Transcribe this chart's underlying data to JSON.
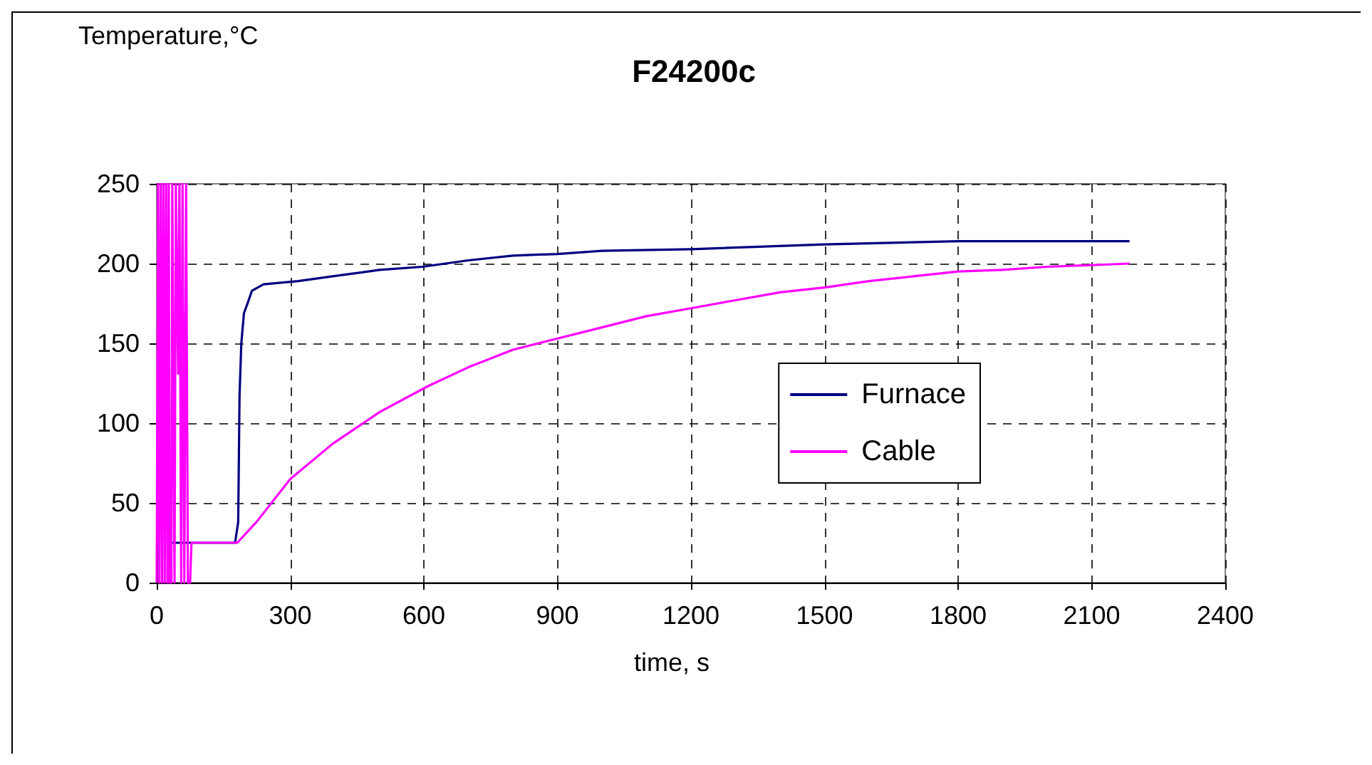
{
  "chart_data": {
    "type": "line",
    "title": "F24200c",
    "xlabel": "time, s",
    "ylabel": "Temperature,°C",
    "xlim": [
      0,
      2400
    ],
    "xticks": [
      0,
      300,
      600,
      900,
      1200,
      1500,
      1800,
      2100,
      2400
    ],
    "ylim": [
      0,
      250
    ],
    "yticks": [
      0,
      50,
      100,
      150,
      200,
      250
    ],
    "grid": true,
    "legend": "right",
    "line_style": "solid",
    "marker": "none",
    "series": [
      {
        "name": "Furnace",
        "color": "#000080",
        "x": [
          30,
          176,
          183,
          186,
          190,
          196,
          204,
          214,
          240,
          318,
          395,
          501,
          597,
          700,
          800,
          900,
          1000,
          1200,
          1500,
          1800,
          2185
        ],
        "values": [
          25,
          25,
          38,
          117,
          150,
          169,
          175,
          183,
          187,
          189,
          192,
          196,
          198,
          202,
          205,
          206,
          208,
          209,
          212,
          214,
          214
        ]
      },
      {
        "name": "Cable",
        "color": "#ff00ff",
        "x": [
          0,
          3,
          6,
          9,
          12,
          15,
          18,
          21,
          24,
          27,
          29,
          31,
          33,
          35,
          40,
          43,
          48,
          51,
          55,
          58,
          62,
          66,
          70,
          75,
          78,
          181,
          224,
          300,
          395,
          501,
          608,
          700,
          800,
          900,
          1000,
          1100,
          1200,
          1300,
          1400,
          1500,
          1600,
          1700,
          1800,
          1900,
          2000,
          2100,
          2185
        ],
        "values": [
          0,
          250,
          0,
          250,
          0,
          250,
          0,
          250,
          0,
          250,
          0,
          25,
          0,
          250,
          0,
          250,
          131,
          250,
          0,
          250,
          0,
          250,
          0,
          0,
          25,
          25,
          38,
          65,
          87,
          107,
          123,
          135,
          146,
          153,
          160,
          167,
          172,
          177,
          182,
          185,
          189,
          192,
          195,
          196,
          198,
          199,
          200
        ]
      }
    ]
  }
}
